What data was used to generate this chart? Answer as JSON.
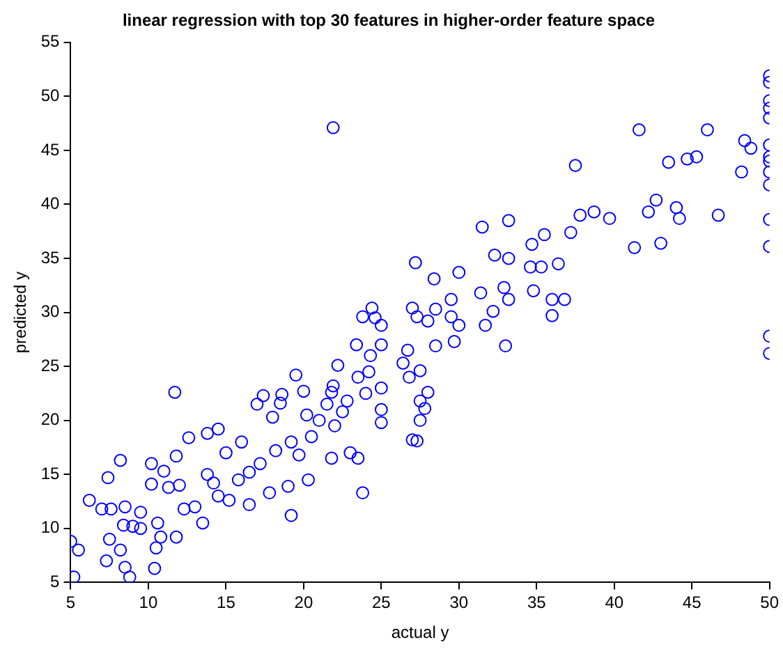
{
  "chart_data": {
    "type": "scatter",
    "title": "linear regression with top 30 features in higher-order feature space",
    "xlabel": "actual y",
    "ylabel": "predicted y",
    "xlim": [
      5,
      50
    ],
    "xticks": [
      5,
      10,
      15,
      20,
      25,
      30,
      35,
      40,
      45,
      50
    ],
    "ylim": [
      5,
      55
    ],
    "yticks": [
      5,
      10,
      15,
      20,
      25,
      30,
      35,
      40,
      45,
      50,
      55
    ],
    "grid": false,
    "legend": false,
    "marker": "circle",
    "series": [
      {
        "color": "#0000ff",
        "x": [
          5,
          5.2,
          5.5,
          6.2,
          7,
          7.4,
          7.5,
          7.3,
          7.6,
          8.2,
          8.4,
          8.5,
          8.8,
          8.2,
          8.5,
          9,
          9.5,
          9.5,
          10.2,
          10.2,
          10.5,
          10.4,
          10.6,
          10.8,
          11,
          11.3,
          11.7,
          11.8,
          11.8,
          12,
          12.3,
          12.6,
          13,
          13.5,
          13.8,
          13.8,
          14.2,
          14.5,
          14.5,
          15,
          15.2,
          15.8,
          16,
          16.5,
          16.5,
          17,
          17.4,
          17.2,
          17.8,
          18,
          18.2,
          18.5,
          18.6,
          19,
          19.2,
          19.2,
          19.7,
          20,
          19.5,
          20.2,
          20.3,
          20.5,
          21,
          21.5,
          21.8,
          21.8,
          21.9,
          22.2,
          22,
          22.5,
          22.8,
          23,
          23.4,
          23.5,
          23.8,
          24,
          23.5,
          23.8,
          24.3,
          24.4,
          24.6,
          24.2,
          25,
          25,
          25,
          25,
          25,
          21.9,
          26.4,
          26.7,
          26.8,
          27,
          27.2,
          27.3,
          27.3,
          27.5,
          27,
          27.5,
          27.8,
          28,
          27.5,
          28.5,
          29.7,
          30,
          29.5,
          28,
          28.5,
          29.5,
          30,
          28.4,
          31.5,
          33.2,
          31.4,
          31.7,
          33,
          32.2,
          32.9,
          32.3,
          33.2,
          33.2,
          34.6,
          34.8,
          34.7,
          35.5,
          35.3,
          36,
          36,
          36.8,
          36.4,
          37.2,
          37.5,
          37.8,
          38.7,
          39.7,
          41.3,
          42.2,
          42.7,
          43,
          41.6,
          43.5,
          44,
          44.2,
          44.7,
          45.3,
          46,
          46.7,
          48.2,
          48.4,
          48.8,
          50,
          50,
          50,
          50,
          50,
          50,
          50,
          50,
          50,
          50,
          50,
          50,
          50,
          50
        ],
        "values": [
          8.8,
          5.5,
          8,
          12.6,
          11.8,
          14.7,
          9,
          7,
          11.8,
          8,
          10.3,
          6.4,
          5.5,
          16.3,
          12,
          10.2,
          11.5,
          10,
          16,
          14.1,
          8.2,
          6.3,
          10.5,
          9.2,
          15.3,
          13.8,
          22.6,
          9.2,
          16.7,
          14,
          11.8,
          18.4,
          12,
          10.5,
          15,
          18.8,
          14.2,
          19.2,
          13,
          17,
          12.6,
          14.5,
          18,
          12.2,
          15.2,
          21.5,
          22.3,
          16,
          13.3,
          20.3,
          17.2,
          21.6,
          22.4,
          13.9,
          11.2,
          18,
          16.8,
          22.7,
          24.2,
          20.5,
          14.5,
          18.5,
          20,
          21.5,
          16.5,
          22.6,
          23.2,
          25.1,
          19.5,
          20.8,
          21.8,
          17,
          27,
          24,
          29.6,
          22.5,
          16.5,
          13.3,
          26,
          30.4,
          29.5,
          24.5,
          23,
          27,
          19.8,
          28.8,
          21,
          47.1,
          25.3,
          26.5,
          24,
          30.4,
          34.6,
          29.6,
          18.1,
          21.8,
          18.2,
          20,
          21.1,
          22.6,
          24.6,
          26.9,
          27.3,
          28.8,
          29.6,
          29.2,
          30.3,
          31.2,
          33.7,
          33.1,
          37.9,
          38.5,
          31.8,
          28.8,
          26.9,
          30.1,
          32.3,
          35.3,
          35,
          31.2,
          34.2,
          32,
          36.3,
          37.2,
          34.2,
          29.7,
          31.2,
          31.2,
          34.5,
          37.4,
          43.6,
          39,
          39.3,
          38.7,
          36,
          39.3,
          40.4,
          36.4,
          46.9,
          43.9,
          39.7,
          38.7,
          44.2,
          44.4,
          46.9,
          39,
          43,
          45.9,
          45.2,
          51.9,
          51.3,
          49.6,
          48.9,
          48,
          45.5,
          44.4,
          44,
          43,
          41.8,
          38.6,
          36.1,
          27.8,
          26.2
        ]
      }
    ]
  }
}
